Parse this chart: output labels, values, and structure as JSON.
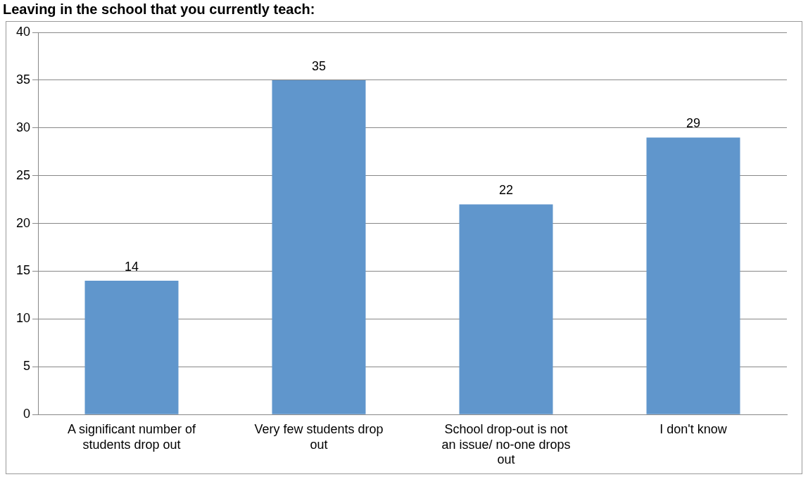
{
  "chart_data": {
    "type": "bar",
    "title": "Leaving in the school that you currently teach:",
    "categories": [
      [
        "A significant number of",
        "students drop out"
      ],
      [
        "Very few students drop",
        "out"
      ],
      [
        "School drop-out is not",
        "an issue/ no-one drops",
        "out"
      ],
      [
        "I don't know"
      ]
    ],
    "values": [
      14,
      35,
      22,
      29
    ],
    "color": "#6096cc",
    "ylim": [
      0,
      40
    ],
    "yticks": [
      0,
      5,
      10,
      15,
      20,
      25,
      30,
      35,
      40
    ],
    "grid": "y",
    "data_labels": true
  }
}
